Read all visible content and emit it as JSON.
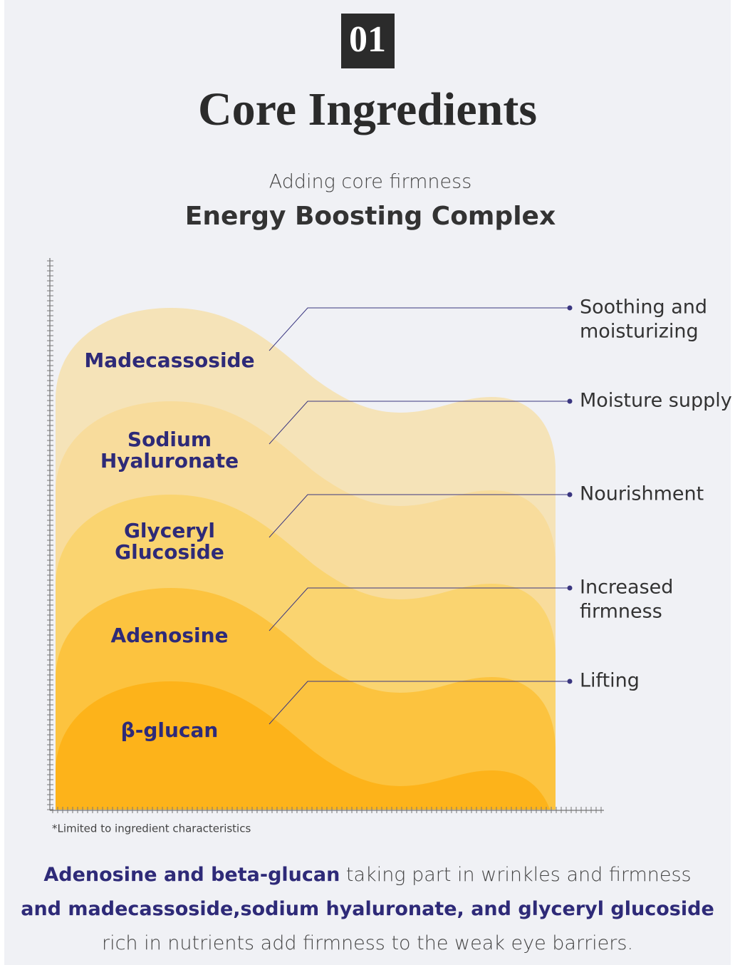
{
  "badge": "01",
  "title": "Core Ingredients",
  "subtitle": "Adding core firmness",
  "heading": "Energy Boosting Complex",
  "layers": [
    {
      "ingredient": [
        "Madecassoside"
      ],
      "effect": [
        "Soothing and",
        "moisturizing"
      ]
    },
    {
      "ingredient": [
        "Sodium",
        "Hyaluronate"
      ],
      "effect": [
        "Moisture supply"
      ]
    },
    {
      "ingredient": [
        "Glyceryl",
        "Glucoside"
      ],
      "effect": [
        "Nourishment"
      ]
    },
    {
      "ingredient": [
        "Adenosine"
      ],
      "effect": [
        "Increased",
        "firmness"
      ]
    },
    {
      "ingredient": [
        "β-glucan"
      ],
      "effect": [
        "Lifting"
      ]
    }
  ],
  "footnote": "*Limited to ingredient characteristics",
  "description": [
    [
      {
        "highlight": "Adenosine and beta-glucan"
      },
      {
        "text": " taking part in wrinkles and firmness"
      }
    ],
    [
      {
        "highlight": "and madecassoside,sodium hyaluronate, and glyceryl glucoside"
      }
    ],
    [
      {
        "text": "rich in nutrients add firmness to the weak eye barriers."
      }
    ]
  ]
}
